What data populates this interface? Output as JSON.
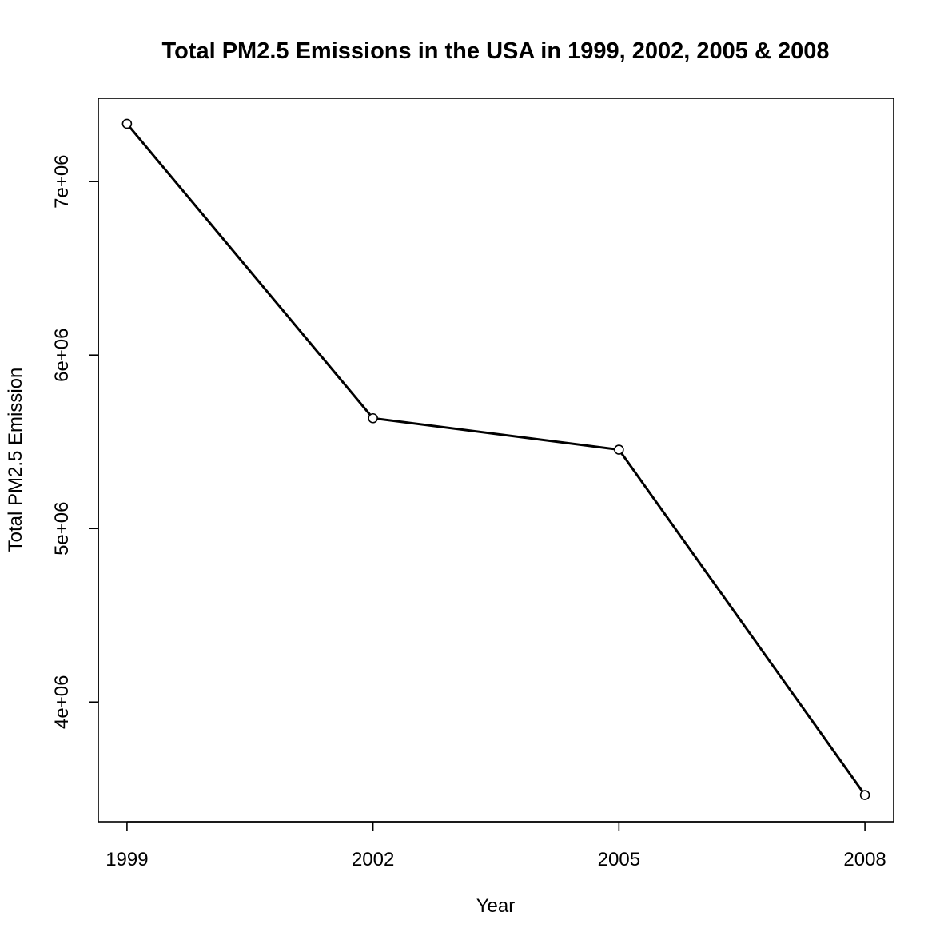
{
  "chart_data": {
    "type": "line",
    "title": "Total PM2.5 Emissions in the USA in 1999, 2002, 2005 & 2008",
    "xlabel": "Year",
    "ylabel": "Total PM2.5 Emission",
    "x": [
      1999,
      2002,
      2005,
      2008
    ],
    "values": [
      7332967,
      5635780,
      5454703,
      3464206
    ],
    "xlim": [
      1998.65,
      2008.35
    ],
    "ylim": [
      3310000,
      7480000
    ],
    "x_ticks": [
      {
        "value": 1999,
        "label": "1999"
      },
      {
        "value": 2002,
        "label": "2002"
      },
      {
        "value": 2005,
        "label": "2005"
      },
      {
        "value": 2008,
        "label": "2008"
      }
    ],
    "y_ticks": [
      {
        "value": 4000000,
        "label": "4e+06"
      },
      {
        "value": 5000000,
        "label": "5e+06"
      },
      {
        "value": 6000000,
        "label": "6e+06"
      },
      {
        "value": 7000000,
        "label": "7e+06"
      }
    ],
    "markers": "open-circle",
    "grid": false,
    "legend": "none",
    "line_color": "#000000",
    "background_color": "#ffffff"
  }
}
